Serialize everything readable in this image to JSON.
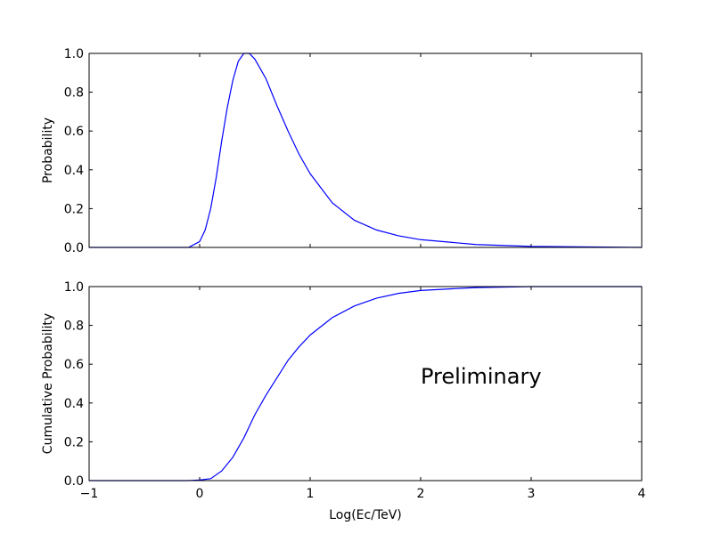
{
  "chart_data": [
    {
      "type": "line",
      "ylabel": "Probability",
      "color": "#0000ff",
      "x": [
        -1,
        -0.1,
        0,
        0.05,
        0.1,
        0.15,
        0.2,
        0.25,
        0.3,
        0.35,
        0.4,
        0.45,
        0.5,
        0.6,
        0.7,
        0.8,
        0.9,
        1.0,
        1.2,
        1.4,
        1.6,
        1.8,
        2.0,
        2.5,
        3.0,
        4.0
      ],
      "values": [
        0,
        0,
        0.03,
        0.09,
        0.2,
        0.36,
        0.55,
        0.72,
        0.86,
        0.96,
        1.0,
        1.0,
        0.97,
        0.87,
        0.73,
        0.6,
        0.48,
        0.38,
        0.23,
        0.14,
        0.09,
        0.06,
        0.04,
        0.015,
        0.005,
        0
      ],
      "xlim": [
        -1,
        4
      ],
      "ylim": [
        0,
        1
      ],
      "xticks": [
        -1,
        0,
        1,
        2,
        3,
        4
      ],
      "yticks": [
        {
          "value": 0,
          "label": "0.0"
        },
        {
          "value": 0.2,
          "label": "0.2"
        },
        {
          "value": 0.4,
          "label": "0.4"
        },
        {
          "value": 0.6,
          "label": "0.6"
        },
        {
          "value": 0.8,
          "label": "0.8"
        },
        {
          "value": 1,
          "label": "1.0"
        }
      ]
    },
    {
      "type": "line",
      "ylabel": "Cumulative Probability",
      "xlabel": "Log(Ec/TeV)",
      "color": "#0000ff",
      "x": [
        -1,
        -0.1,
        0,
        0.1,
        0.2,
        0.3,
        0.4,
        0.5,
        0.6,
        0.7,
        0.8,
        0.9,
        1.0,
        1.2,
        1.4,
        1.6,
        1.8,
        2.0,
        2.5,
        3.0,
        4.0
      ],
      "values": [
        0,
        0,
        0.003,
        0.01,
        0.05,
        0.12,
        0.22,
        0.34,
        0.44,
        0.53,
        0.62,
        0.69,
        0.75,
        0.84,
        0.9,
        0.94,
        0.965,
        0.98,
        0.995,
        1.0,
        1.0
      ],
      "xlim": [
        -1,
        4
      ],
      "ylim": [
        0,
        1
      ],
      "xticks": [
        {
          "value": -1,
          "label": "−1"
        },
        0,
        1,
        2,
        3,
        4
      ],
      "yticks": [
        {
          "value": 0,
          "label": "0.0"
        },
        {
          "value": 0.2,
          "label": "0.2"
        },
        {
          "value": 0.4,
          "label": "0.4"
        },
        {
          "value": 0.6,
          "label": "0.6"
        },
        {
          "value": 0.8,
          "label": "0.8"
        },
        {
          "value": 1,
          "label": "1.0"
        }
      ],
      "annotation": {
        "text": "Preliminary",
        "x": 2,
        "y": 0.5,
        "color": "#ff0000"
      }
    }
  ]
}
